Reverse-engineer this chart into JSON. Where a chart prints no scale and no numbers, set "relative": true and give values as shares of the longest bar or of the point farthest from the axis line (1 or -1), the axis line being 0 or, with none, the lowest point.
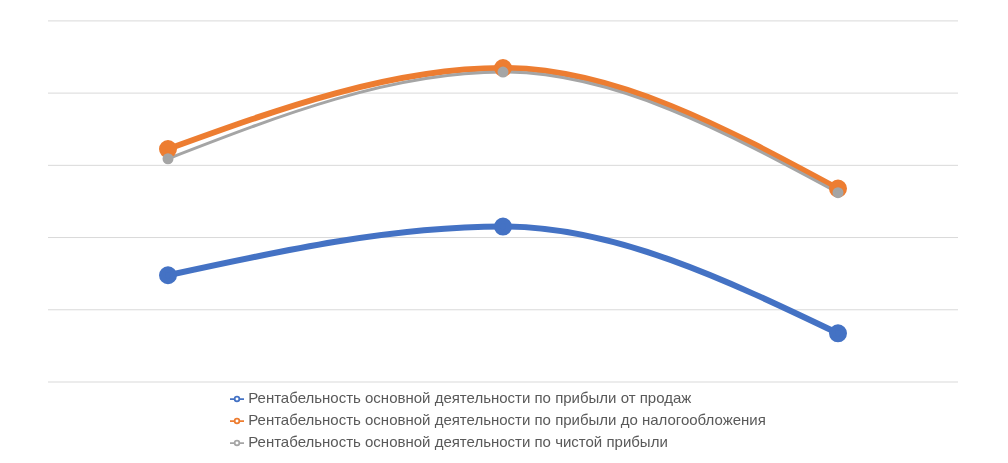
{
  "chart_data": {
    "type": "line",
    "relative": true,
    "categories": [
      null,
      null,
      null
    ],
    "grid": "y",
    "legend": "bottom",
    "marker": "circle",
    "series": [
      {
        "name": "Рентабельность основной деятельности по прибыли от продаж",
        "color": "#4472c4",
        "values": [
          0.34,
          0.495,
          0.155
        ]
      },
      {
        "name": "Рентабельность основной деятельности по прибыли до налогообложения",
        "color": "#ed7d31",
        "values": [
          0.742,
          1,
          0.616
        ]
      },
      {
        "name": "Рентабельность основной деятельности по чистой прибыли",
        "color": "#a5a5a5",
        "values": [
          0.711,
          0.987,
          0.603
        ]
      }
    ]
  }
}
